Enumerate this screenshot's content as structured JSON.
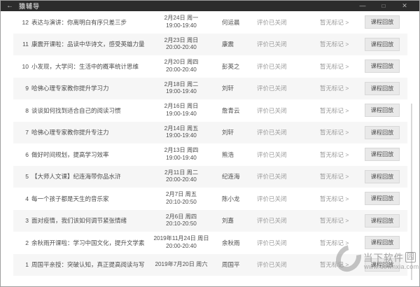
{
  "window": {
    "title": "猿辅导",
    "back_icon": "←",
    "minimize_icon": "—",
    "maximize_icon": "□",
    "close_icon": "✕"
  },
  "list": {
    "rows": [
      {
        "num": "12",
        "title": "表达与演讲：你离明白有序只差三步",
        "date": "2月24日 周一",
        "time": "19:00-19:40",
        "teacher": "何运晨",
        "status": "评价已关闭",
        "mark": "暂无标记 >",
        "action": "课程回放"
      },
      {
        "num": "11",
        "title": "康震开课啦：品读中华诗文，感受英雄力量",
        "date": "2月23日 周日",
        "time": "20:00-20:40",
        "teacher": "康震",
        "status": "评价已关闭",
        "mark": "暂无标记 >",
        "action": "课程回放"
      },
      {
        "num": "10",
        "title": "小发现，大学问：生活中的概率统计思维",
        "date": "2月20日 周四",
        "time": "20:00-20:40",
        "teacher": "彭英之",
        "status": "评价已关闭",
        "mark": "暂无标记 >",
        "action": "课程回放"
      },
      {
        "num": "9",
        "title": "哈佛心理专家教你提升学习力",
        "date": "2月18日 周二",
        "time": "19:00-19:40",
        "teacher": "刘轩",
        "status": "评价已关闭",
        "mark": "暂无标记 >",
        "action": "课程回放"
      },
      {
        "num": "8",
        "title": "谈谈如何找到适合自己的阅读习惯",
        "date": "2月16日 周日",
        "time": "19:00-19:40",
        "teacher": "詹青云",
        "status": "评价已关闭",
        "mark": "暂无标记 >",
        "action": "课程回放"
      },
      {
        "num": "7",
        "title": "哈佛心理专家教你提升专注力",
        "date": "2月14日 周五",
        "time": "19:00-19:40",
        "teacher": "刘轩",
        "status": "评价已关闭",
        "mark": "暂无标记 >",
        "action": "课程回放"
      },
      {
        "num": "6",
        "title": "做好时间规划，提高学习效率",
        "date": "2月13日 周四",
        "time": "19:00-19:40",
        "teacher": "熊浩",
        "status": "评价已关闭",
        "mark": "暂无标记 >",
        "action": "课程回放"
      },
      {
        "num": "5",
        "title": "【大师人文课】纪连海带你品水浒",
        "date": "2月11日 周二",
        "time": "20:00-20:40",
        "teacher": "纪连海",
        "status": "评价已关闭",
        "mark": "暂无标记 >",
        "action": "课程回放"
      },
      {
        "num": "4",
        "title": "每一个孩子都是天生的音乐家",
        "date": "2月7日 周五",
        "time": "20:10-20:50",
        "teacher": "陈小龙",
        "status": "评价已关闭",
        "mark": "暂无标记 >",
        "action": "课程回放"
      },
      {
        "num": "3",
        "title": "面对疫情，我们该如何调节紧张情绪",
        "date": "2月6日 周四",
        "time": "20:10-20:50",
        "teacher": "刘嘉",
        "status": "评价已关闭",
        "mark": "暂无标记 >",
        "action": "课程回放"
      },
      {
        "num": "2",
        "title": "余秋雨开课啦：学习中国文化，提升文学素养",
        "date": "2019年11月24日 周日",
        "time": "20:00-20:40",
        "teacher": "余秋雨",
        "status": "评价已关闭",
        "mark": "暂无标记 >",
        "action": "课程回放"
      },
      {
        "num": "1",
        "title": "周国平亲授：突破认知，真正提高阅读与写作能力",
        "date": "2019年7月20日 周六",
        "time": "",
        "teacher": "周国平",
        "status": "评价已关闭",
        "mark": "暂无标记 >",
        "action": "课程回放"
      }
    ]
  },
  "watermark": {
    "site_prefix": "当下软件",
    "site_suffix": "园",
    "url": "www.downxia.com"
  }
}
